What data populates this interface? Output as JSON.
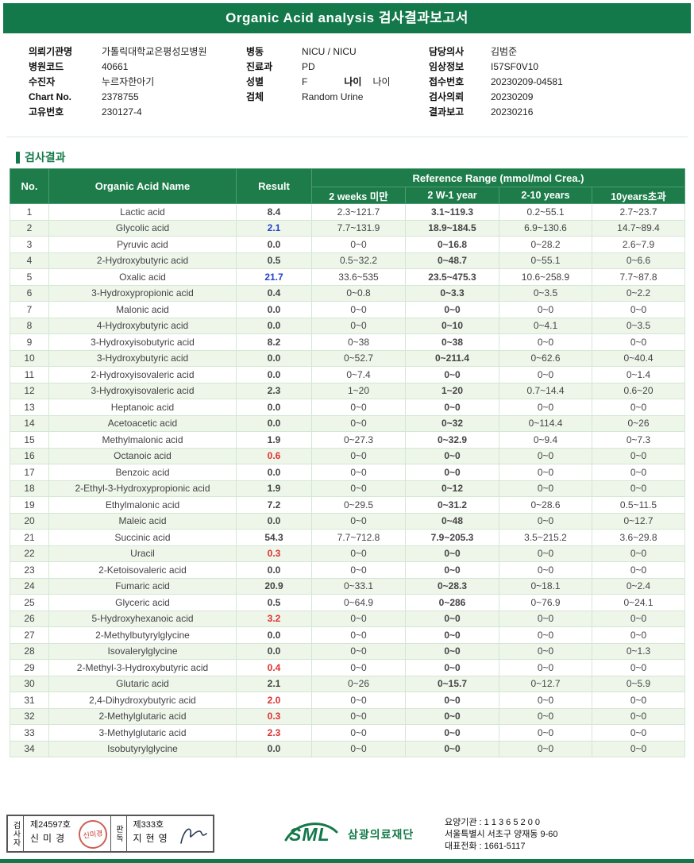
{
  "header": {
    "title": "Organic Acid analysis 검사결과보고서"
  },
  "patient_info": {
    "col1": [
      {
        "label": "의뢰기관명",
        "value": "가톨릭대학교은평성모병원"
      },
      {
        "label": "병원코드",
        "value": "40661"
      },
      {
        "label": "수진자",
        "value": "누르자한아기"
      },
      {
        "label": "Chart No.",
        "value": "2378755"
      },
      {
        "label": "고유번호",
        "value": "230127-4"
      }
    ],
    "col2": [
      {
        "label": "병동",
        "value": "NICU / NICU"
      },
      {
        "label": "진료과",
        "value": "PD"
      },
      {
        "label": "성별",
        "value": "F",
        "extra_label": "나이",
        "extra_value": "나이"
      },
      {
        "label": "검체",
        "value": "Random Urine"
      }
    ],
    "col3": [
      {
        "label": "담당의사",
        "value": "김범준"
      },
      {
        "label": "임상정보",
        "value": "I57SF0V10"
      },
      {
        "label": "접수번호",
        "value": "20230209-04581"
      },
      {
        "label": "검사의뢰",
        "value": "20230209"
      },
      {
        "label": "결과보고",
        "value": "20230216"
      }
    ]
  },
  "section_title": "검사결과",
  "table": {
    "header": {
      "no": "No.",
      "name": "Organic Acid Name",
      "result": "Result",
      "ref_group": "Reference Range (mmol/mol Crea.)",
      "sub": [
        "2 weeks 미만",
        "2 W-1 year",
        "2-10 years",
        "10years초과"
      ]
    },
    "rows": [
      {
        "no": "1",
        "name": "Lactic acid",
        "result": "8.4",
        "color": "black",
        "refs": [
          "2.3~121.7",
          "3.1~119.3",
          "0.2~55.1",
          "2.7~23.7"
        ]
      },
      {
        "no": "2",
        "name": "Glycolic acid",
        "result": "2.1",
        "color": "blue",
        "refs": [
          "7.7~131.9",
          "18.9~184.5",
          "6.9~130.6",
          "14.7~89.4"
        ]
      },
      {
        "no": "3",
        "name": "Pyruvic acid",
        "result": "0.0",
        "color": "black",
        "refs": [
          "0~0",
          "0~16.8",
          "0~28.2",
          "2.6~7.9"
        ]
      },
      {
        "no": "4",
        "name": "2-Hydroxybutyric acid",
        "result": "0.5",
        "color": "black",
        "refs": [
          "0.5~32.2",
          "0~48.7",
          "0~55.1",
          "0~6.6"
        ]
      },
      {
        "no": "5",
        "name": "Oxalic acid",
        "result": "21.7",
        "color": "blue",
        "refs": [
          "33.6~535",
          "23.5~475.3",
          "10.6~258.9",
          "7.7~87.8"
        ]
      },
      {
        "no": "6",
        "name": "3-Hydroxypropionic acid",
        "result": "0.4",
        "color": "black",
        "refs": [
          "0~0.8",
          "0~3.3",
          "0~3.5",
          "0~2.2"
        ]
      },
      {
        "no": "7",
        "name": "Malonic acid",
        "result": "0.0",
        "color": "black",
        "refs": [
          "0~0",
          "0~0",
          "0~0",
          "0~0"
        ]
      },
      {
        "no": "8",
        "name": "4-Hydroxybutyric acid",
        "result": "0.0",
        "color": "black",
        "refs": [
          "0~0",
          "0~10",
          "0~4.1",
          "0~3.5"
        ]
      },
      {
        "no": "9",
        "name": "3-Hydroxyisobutyric acid",
        "result": "8.2",
        "color": "black",
        "refs": [
          "0~38",
          "0~38",
          "0~0",
          "0~0"
        ]
      },
      {
        "no": "10",
        "name": "3-Hydroxybutyric acid",
        "result": "0.0",
        "color": "black",
        "refs": [
          "0~52.7",
          "0~211.4",
          "0~62.6",
          "0~40.4"
        ]
      },
      {
        "no": "11",
        "name": "2-Hydroxyisovaleric acid",
        "result": "0.0",
        "color": "black",
        "refs": [
          "0~7.4",
          "0~0",
          "0~0",
          "0~1.4"
        ]
      },
      {
        "no": "12",
        "name": "3-Hydroxyisovaleric acid",
        "result": "2.3",
        "color": "black",
        "refs": [
          "1~20",
          "1~20",
          "0.7~14.4",
          "0.6~20"
        ]
      },
      {
        "no": "13",
        "name": "Heptanoic acid",
        "result": "0.0",
        "color": "black",
        "refs": [
          "0~0",
          "0~0",
          "0~0",
          "0~0"
        ]
      },
      {
        "no": "14",
        "name": "Acetoacetic acid",
        "result": "0.0",
        "color": "black",
        "refs": [
          "0~0",
          "0~32",
          "0~114.4",
          "0~26"
        ]
      },
      {
        "no": "15",
        "name": "Methylmalonic acid",
        "result": "1.9",
        "color": "black",
        "refs": [
          "0~27.3",
          "0~32.9",
          "0~9.4",
          "0~7.3"
        ]
      },
      {
        "no": "16",
        "name": "Octanoic acid",
        "result": "0.6",
        "color": "red",
        "refs": [
          "0~0",
          "0~0",
          "0~0",
          "0~0"
        ]
      },
      {
        "no": "17",
        "name": "Benzoic acid",
        "result": "0.0",
        "color": "black",
        "refs": [
          "0~0",
          "0~0",
          "0~0",
          "0~0"
        ]
      },
      {
        "no": "18",
        "name": "2-Ethyl-3-Hydroxypropionic acid",
        "result": "1.9",
        "color": "black",
        "refs": [
          "0~0",
          "0~12",
          "0~0",
          "0~0"
        ]
      },
      {
        "no": "19",
        "name": "Ethylmalonic acid",
        "result": "7.2",
        "color": "black",
        "refs": [
          "0~29.5",
          "0~31.2",
          "0~28.6",
          "0.5~11.5"
        ]
      },
      {
        "no": "20",
        "name": "Maleic acid",
        "result": "0.0",
        "color": "black",
        "refs": [
          "0~0",
          "0~48",
          "0~0",
          "0~12.7"
        ]
      },
      {
        "no": "21",
        "name": "Succinic acid",
        "result": "54.3",
        "color": "black",
        "refs": [
          "7.7~712.8",
          "7.9~205.3",
          "3.5~215.2",
          "3.6~29.8"
        ]
      },
      {
        "no": "22",
        "name": "Uracil",
        "result": "0.3",
        "color": "red",
        "refs": [
          "0~0",
          "0~0",
          "0~0",
          "0~0"
        ]
      },
      {
        "no": "23",
        "name": "2-Ketoisovaleric acid",
        "result": "0.0",
        "color": "black",
        "refs": [
          "0~0",
          "0~0",
          "0~0",
          "0~0"
        ]
      },
      {
        "no": "24",
        "name": "Fumaric acid",
        "result": "20.9",
        "color": "black",
        "refs": [
          "0~33.1",
          "0~28.3",
          "0~18.1",
          "0~2.4"
        ]
      },
      {
        "no": "25",
        "name": "Glyceric acid",
        "result": "0.5",
        "color": "black",
        "refs": [
          "0~64.9",
          "0~286",
          "0~76.9",
          "0~24.1"
        ]
      },
      {
        "no": "26",
        "name": "5-Hydroxyhexanoic acid",
        "result": "3.2",
        "color": "red",
        "refs": [
          "0~0",
          "0~0",
          "0~0",
          "0~0"
        ]
      },
      {
        "no": "27",
        "name": "2-Methylbutyrylglycine",
        "result": "0.0",
        "color": "black",
        "refs": [
          "0~0",
          "0~0",
          "0~0",
          "0~0"
        ]
      },
      {
        "no": "28",
        "name": "Isovalerylglycine",
        "result": "0.0",
        "color": "black",
        "refs": [
          "0~0",
          "0~0",
          "0~0",
          "0~1.3"
        ]
      },
      {
        "no": "29",
        "name": "2-Methyl-3-Hydroxybutyric acid",
        "result": "0.4",
        "color": "red",
        "refs": [
          "0~0",
          "0~0",
          "0~0",
          "0~0"
        ]
      },
      {
        "no": "30",
        "name": "Glutaric acid",
        "result": "2.1",
        "color": "black",
        "refs": [
          "0~26",
          "0~15.7",
          "0~12.7",
          "0~5.9"
        ]
      },
      {
        "no": "31",
        "name": "2,4-Dihydroxybutyric acid",
        "result": "2.0",
        "color": "red",
        "refs": [
          "0~0",
          "0~0",
          "0~0",
          "0~0"
        ]
      },
      {
        "no": "32",
        "name": "2-Methylglutaric acid",
        "result": "0.3",
        "color": "red",
        "refs": [
          "0~0",
          "0~0",
          "0~0",
          "0~0"
        ]
      },
      {
        "no": "33",
        "name": "3-Methylglutaric acid",
        "result": "2.3",
        "color": "red",
        "refs": [
          "0~0",
          "0~0",
          "0~0",
          "0~0"
        ]
      },
      {
        "no": "34",
        "name": "Isobutyrylglycine",
        "result": "0.0",
        "color": "black",
        "refs": [
          "0~0",
          "0~0",
          "0~0",
          "0~0"
        ]
      }
    ]
  },
  "footer": {
    "examiner": {
      "label": "검사자",
      "cert_no": "제24597호",
      "name": "신미경",
      "stamp_text": "신미경"
    },
    "reader": {
      "label": "판독",
      "cert_no": "제333호",
      "name": "지현영"
    },
    "logo": {
      "abbr": "SML",
      "name": "삼광의료재단"
    },
    "org_line": "요양기관 : 1 1 3 6 5 2 0 0",
    "addr_line": "서울특별시 서초구 양재동 9-60",
    "tel_line": "대표전화 : 1661-5117"
  },
  "colors": {
    "green": "#14794a",
    "row_alt": "#eef6ea",
    "result_blue": "#2442c8",
    "result_red": "#e03030",
    "ref_gray": "#a5aca5"
  }
}
